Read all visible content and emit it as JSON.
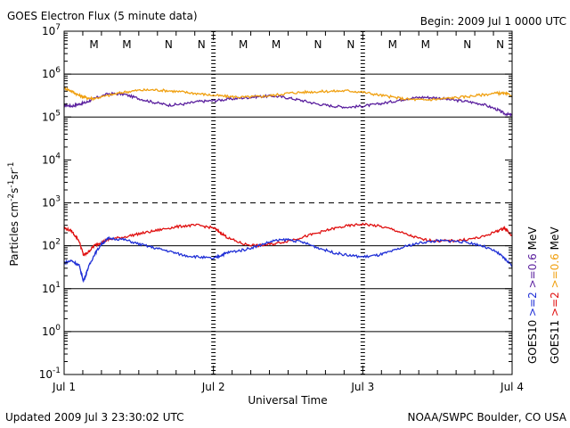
{
  "header": {
    "title": "GOES Electron Flux (5 minute data)",
    "begin": "Begin: 2009 Jul 1 0000 UTC"
  },
  "footer": {
    "updated": "Updated 2009 Jul  3 23:30:02 UTC",
    "credit": "NOAA/SWPC Boulder, CO USA"
  },
  "colors": {
    "goes10_lo": "#1f2fd6",
    "goes10_hi": "#5a1f9e",
    "goes11_lo": "#e01010",
    "goes11_hi": "#f0a010",
    "marker_m_blue": "#1f2fd6",
    "marker_m_red": "#e01010"
  },
  "chart_data": {
    "type": "line",
    "title": "GOES Electron Flux (5 minute data)",
    "xlabel": "Universal Time",
    "ylabel_parts": {
      "main": "Particles cm",
      "e1": "-2",
      "s": "s",
      "e2": "-1",
      "sr": "sr",
      "e3": "-1"
    },
    "x_unit": "day",
    "xlim": [
      0,
      3
    ],
    "x_ticks": [
      {
        "x": 0,
        "label": "Jul 1"
      },
      {
        "x": 1,
        "label": "Jul 2"
      },
      {
        "x": 2,
        "label": "Jul 3"
      },
      {
        "x": 3,
        "label": "Jul 4"
      }
    ],
    "y_scale": "log",
    "ylim": [
      0.1,
      10000000
    ],
    "y_ticks": [
      {
        "base": "10",
        "exp": "7",
        "value": 10000000
      },
      {
        "base": "10",
        "exp": "6",
        "value": 1000000
      },
      {
        "base": "10",
        "exp": "5",
        "value": 100000
      },
      {
        "base": "10",
        "exp": "4",
        "value": 10000
      },
      {
        "base": "10",
        "exp": "3",
        "value": 1000
      },
      {
        "base": "10",
        "exp": "2",
        "value": 100
      },
      {
        "base": "10",
        "exp": "1",
        "value": 10
      },
      {
        "base": "10",
        "exp": "0",
        "value": 1
      },
      {
        "base": "10",
        "exp": "-1",
        "value": 0.1
      }
    ],
    "grid_solid": [
      1000000,
      100000,
      100,
      10,
      1
    ],
    "grid_dashed": [
      1000
    ],
    "markers": [
      {
        "label": "M",
        "x": 0.2,
        "color": "#1f2fd6"
      },
      {
        "label": "M",
        "x": 0.42,
        "color": "#e01010"
      },
      {
        "label": "N",
        "x": 0.7,
        "color": "#1f2fd6"
      },
      {
        "label": "N",
        "x": 0.92,
        "color": "#e01010"
      },
      {
        "label": "M",
        "x": 1.2,
        "color": "#1f2fd6"
      },
      {
        "label": "M",
        "x": 1.42,
        "color": "#e01010"
      },
      {
        "label": "N",
        "x": 1.7,
        "color": "#1f2fd6"
      },
      {
        "label": "N",
        "x": 1.92,
        "color": "#e01010"
      },
      {
        "label": "M",
        "x": 2.2,
        "color": "#1f2fd6"
      },
      {
        "label": "M",
        "x": 2.42,
        "color": "#e01010"
      },
      {
        "label": "N",
        "x": 2.7,
        "color": "#1f2fd6"
      },
      {
        "label": "N",
        "x": 2.92,
        "color": "#e01010"
      }
    ],
    "legend": {
      "placement": "right",
      "groups": [
        {
          "satellite": "GOES10",
          "lo": ">=2",
          "hi": ">=0.6",
          "unit": "MeV",
          "lo_color": "#1f2fd6",
          "hi_color": "#5a1f9e"
        },
        {
          "satellite": "GOES11",
          "lo": ">=2",
          "hi": ">=0.6",
          "unit": "MeV",
          "lo_color": "#e01010",
          "hi_color": "#f0a010"
        }
      ]
    },
    "series": [
      {
        "color": "#5a1f9e",
        "x": [
          0,
          0.05,
          0.1,
          0.15,
          0.2,
          0.3,
          0.4,
          0.5,
          0.6,
          0.7,
          0.8,
          0.9,
          1.0,
          1.1,
          1.2,
          1.3,
          1.4,
          1.5,
          1.6,
          1.7,
          1.8,
          1.9,
          2.0,
          2.1,
          2.2,
          2.3,
          2.4,
          2.5,
          2.6,
          2.7,
          2.8,
          2.9,
          2.95,
          3.0
        ],
        "values": [
          190000,
          180000,
          200000,
          220000,
          270000,
          350000,
          340000,
          270000,
          220000,
          190000,
          200000,
          230000,
          240000,
          260000,
          280000,
          300000,
          310000,
          280000,
          240000,
          200000,
          180000,
          170000,
          180000,
          200000,
          230000,
          270000,
          290000,
          280000,
          250000,
          230000,
          200000,
          150000,
          120000,
          110000
        ]
      },
      {
        "color": "#f0a010",
        "x": [
          0,
          0.05,
          0.1,
          0.15,
          0.2,
          0.3,
          0.4,
          0.5,
          0.6,
          0.7,
          0.8,
          0.9,
          1.0,
          1.1,
          1.2,
          1.3,
          1.4,
          1.5,
          1.6,
          1.7,
          1.8,
          1.9,
          2.0,
          2.1,
          2.2,
          2.3,
          2.4,
          2.5,
          2.6,
          2.7,
          2.8,
          2.9,
          2.95,
          3.0
        ],
        "values": [
          480000,
          400000,
          320000,
          280000,
          270000,
          320000,
          380000,
          420000,
          430000,
          410000,
          380000,
          350000,
          320000,
          300000,
          290000,
          300000,
          320000,
          360000,
          380000,
          390000,
          400000,
          410000,
          380000,
          330000,
          290000,
          260000,
          250000,
          260000,
          280000,
          300000,
          330000,
          360000,
          350000,
          320000
        ]
      },
      {
        "color": "#e01010",
        "x": [
          0,
          0.05,
          0.1,
          0.13,
          0.16,
          0.2,
          0.25,
          0.3,
          0.4,
          0.5,
          0.6,
          0.7,
          0.8,
          0.9,
          1.0,
          1.05,
          1.1,
          1.2,
          1.3,
          1.4,
          1.5,
          1.6,
          1.7,
          1.8,
          1.9,
          2.0,
          2.1,
          2.2,
          2.3,
          2.4,
          2.5,
          2.6,
          2.7,
          2.8,
          2.9,
          2.95,
          3.0
        ],
        "values": [
          260,
          220,
          130,
          60,
          70,
          100,
          120,
          140,
          160,
          190,
          220,
          260,
          290,
          300,
          260,
          200,
          150,
          110,
          100,
          110,
          130,
          160,
          200,
          250,
          290,
          320,
          290,
          240,
          180,
          140,
          130,
          130,
          140,
          160,
          220,
          260,
          170
        ]
      },
      {
        "color": "#1f2fd6",
        "x": [
          0,
          0.05,
          0.1,
          0.13,
          0.16,
          0.2,
          0.25,
          0.3,
          0.4,
          0.5,
          0.6,
          0.7,
          0.8,
          0.9,
          1.0,
          1.05,
          1.1,
          1.2,
          1.3,
          1.4,
          1.5,
          1.6,
          1.7,
          1.8,
          1.9,
          2.0,
          2.1,
          2.2,
          2.3,
          2.4,
          2.5,
          2.6,
          2.7,
          2.8,
          2.9,
          2.95,
          3.0
        ],
        "values": [
          40,
          45,
          35,
          15,
          30,
          60,
          110,
          150,
          140,
          110,
          90,
          75,
          60,
          55,
          50,
          60,
          70,
          80,
          100,
          130,
          140,
          120,
          90,
          70,
          60,
          55,
          60,
          75,
          100,
          120,
          130,
          130,
          120,
          100,
          70,
          50,
          35
        ]
      }
    ]
  }
}
